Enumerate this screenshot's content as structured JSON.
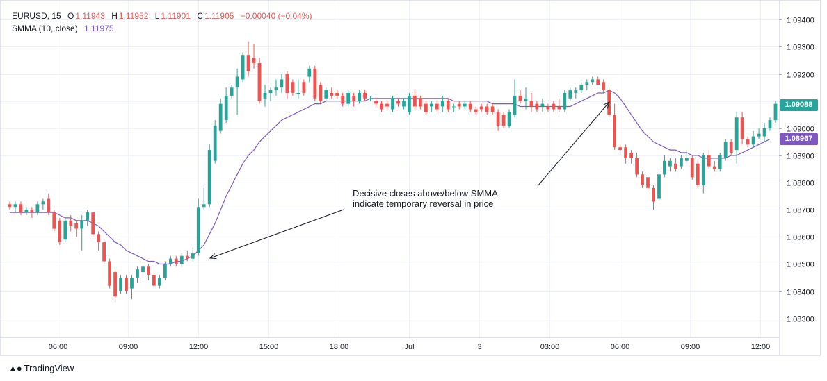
{
  "legend": {
    "symbol": "EURUSD, 15",
    "o_label": "O",
    "o_value": "1.11943",
    "h_label": "H",
    "h_value": "1.11952",
    "l_label": "L",
    "l_value": "1.11901",
    "c_label": "C",
    "c_value": "1.11905",
    "change": "−0.00040 (−0.04%)",
    "indicator": "SMMA (10, close)",
    "indicator_value": "1.11975"
  },
  "annotation": {
    "line1": "Decisive closes above/below SMMA",
    "line2": "indicate temporary reversal in price"
  },
  "price_tags": {
    "last_price": "1.09088",
    "smma_price": "1.08967"
  },
  "brand": {
    "name": "TradingView"
  },
  "colors": {
    "up": "#26a69a",
    "down": "#ef5350",
    "smma": "#7e57c2",
    "grid": "#f0f3fa",
    "axis_text": "#131722"
  },
  "chart_data": {
    "type": "candlestick",
    "title": "",
    "xlabel": "",
    "ylabel": "",
    "ylim": [
      1.0823,
      1.0947
    ],
    "y_ticks": [
      "1.08300",
      "1.08400",
      "1.08500",
      "1.08600",
      "1.08700",
      "1.08800",
      "1.08900",
      "1.09000",
      "1.09100",
      "1.09200",
      "1.09300",
      "1.09400"
    ],
    "x_ticks": [
      {
        "label": "06:00",
        "t": 6
      },
      {
        "label": "09:00",
        "t": 9
      },
      {
        "label": "12:00",
        "t": 12
      },
      {
        "label": "15:00",
        "t": 15
      },
      {
        "label": "18:00",
        "t": 18
      },
      {
        "label": "Jul",
        "t": 21
      },
      {
        "label": "3",
        "t": 24
      },
      {
        "label": "03:00",
        "t": 27
      },
      {
        "label": "06:00",
        "t": 30
      },
      {
        "label": "09:00",
        "t": 33
      },
      {
        "label": "12:00",
        "t": 36
      }
    ],
    "candles": [
      {
        "o": 1.0872,
        "h": 1.0873,
        "l": 1.087,
        "c": 1.0871
      },
      {
        "o": 1.0871,
        "h": 1.0873,
        "l": 1.0869,
        "c": 1.0872
      },
      {
        "o": 1.0872,
        "h": 1.0873,
        "l": 1.0868,
        "c": 1.0869
      },
      {
        "o": 1.0869,
        "h": 1.0871,
        "l": 1.0868,
        "c": 1.087
      },
      {
        "o": 1.087,
        "h": 1.0871,
        "l": 1.0867,
        "c": 1.0869
      },
      {
        "o": 1.0869,
        "h": 1.0873,
        "l": 1.0868,
        "c": 1.0872
      },
      {
        "o": 1.0872,
        "h": 1.0874,
        "l": 1.087,
        "c": 1.0873
      },
      {
        "o": 1.0874,
        "h": 1.0876,
        "l": 1.0868,
        "c": 1.0869
      },
      {
        "o": 1.0869,
        "h": 1.087,
        "l": 1.0862,
        "c": 1.0863
      },
      {
        "o": 1.0866,
        "h": 1.0867,
        "l": 1.0857,
        "c": 1.0858
      },
      {
        "o": 1.0859,
        "h": 1.0867,
        "l": 1.0858,
        "c": 1.0866
      },
      {
        "o": 1.0866,
        "h": 1.0868,
        "l": 1.0862,
        "c": 1.0864
      },
      {
        "o": 1.0865,
        "h": 1.0866,
        "l": 1.086,
        "c": 1.0863
      },
      {
        "o": 1.0863,
        "h": 1.0868,
        "l": 1.0855,
        "c": 1.0866
      },
      {
        "o": 1.0866,
        "h": 1.087,
        "l": 1.0864,
        "c": 1.0869
      },
      {
        "o": 1.0869,
        "h": 1.0869,
        "l": 1.086,
        "c": 1.0861
      },
      {
        "o": 1.0861,
        "h": 1.0862,
        "l": 1.0855,
        "c": 1.0858
      },
      {
        "o": 1.0858,
        "h": 1.0859,
        "l": 1.085,
        "c": 1.0851
      },
      {
        "o": 1.0851,
        "h": 1.0852,
        "l": 1.0841,
        "c": 1.0842
      },
      {
        "o": 1.0847,
        "h": 1.0848,
        "l": 1.0836,
        "c": 1.0838
      },
      {
        "o": 1.084,
        "h": 1.0846,
        "l": 1.0839,
        "c": 1.0845
      },
      {
        "o": 1.0845,
        "h": 1.0846,
        "l": 1.0839,
        "c": 1.084
      },
      {
        "o": 1.0841,
        "h": 1.0846,
        "l": 1.0837,
        "c": 1.0845
      },
      {
        "o": 1.0845,
        "h": 1.0849,
        "l": 1.0843,
        "c": 1.0848
      },
      {
        "o": 1.0847,
        "h": 1.085,
        "l": 1.0844,
        "c": 1.0849
      },
      {
        "o": 1.0849,
        "h": 1.085,
        "l": 1.0844,
        "c": 1.0846
      },
      {
        "o": 1.0846,
        "h": 1.0847,
        "l": 1.0841,
        "c": 1.0842
      },
      {
        "o": 1.0842,
        "h": 1.0846,
        "l": 1.0841,
        "c": 1.0845
      },
      {
        "o": 1.0845,
        "h": 1.0851,
        "l": 1.0844,
        "c": 1.085
      },
      {
        "o": 1.085,
        "h": 1.0853,
        "l": 1.0849,
        "c": 1.0852
      },
      {
        "o": 1.0852,
        "h": 1.0853,
        "l": 1.0849,
        "c": 1.085
      },
      {
        "o": 1.085,
        "h": 1.0854,
        "l": 1.0849,
        "c": 1.0853
      },
      {
        "o": 1.0853,
        "h": 1.0855,
        "l": 1.0851,
        "c": 1.0852
      },
      {
        "o": 1.0852,
        "h": 1.0856,
        "l": 1.0851,
        "c": 1.0854
      },
      {
        "o": 1.0854,
        "h": 1.0874,
        "l": 1.0853,
        "c": 1.0871
      },
      {
        "o": 1.0871,
        "h": 1.0878,
        "l": 1.087,
        "c": 1.0872
      },
      {
        "o": 1.0872,
        "h": 1.0894,
        "l": 1.0871,
        "c": 1.0892
      },
      {
        "o": 1.0888,
        "h": 1.0903,
        "l": 1.0887,
        "c": 1.0901
      },
      {
        "o": 1.0899,
        "h": 1.0911,
        "l": 1.0898,
        "c": 1.0909
      },
      {
        "o": 1.0903,
        "h": 1.0915,
        "l": 1.0902,
        "c": 1.0912
      },
      {
        "o": 1.0912,
        "h": 1.0916,
        "l": 1.0911,
        "c": 1.0915
      },
      {
        "o": 1.0915,
        "h": 1.0922,
        "l": 1.0905,
        "c": 1.0919
      },
      {
        "o": 1.0918,
        "h": 1.0928,
        "l": 1.0917,
        "c": 1.0927
      },
      {
        "o": 1.0927,
        "h": 1.0932,
        "l": 1.0919,
        "c": 1.0921
      },
      {
        "o": 1.0926,
        "h": 1.0931,
        "l": 1.0922,
        "c": 1.0924
      },
      {
        "o": 1.0924,
        "h": 1.0926,
        "l": 1.0909,
        "c": 1.091
      },
      {
        "o": 1.0911,
        "h": 1.0916,
        "l": 1.0908,
        "c": 1.0913
      },
      {
        "o": 1.0913,
        "h": 1.0915,
        "l": 1.091,
        "c": 1.0914
      },
      {
        "o": 1.0914,
        "h": 1.0918,
        "l": 1.0912,
        "c": 1.0915
      },
      {
        "o": 1.0915,
        "h": 1.092,
        "l": 1.0913,
        "c": 1.0918
      },
      {
        "o": 1.092,
        "h": 1.0921,
        "l": 1.0911,
        "c": 1.0913
      },
      {
        "o": 1.0917,
        "h": 1.0918,
        "l": 1.0912,
        "c": 1.0913
      },
      {
        "o": 1.0913,
        "h": 1.0918,
        "l": 1.0911,
        "c": 1.0913
      },
      {
        "o": 1.0917,
        "h": 1.0918,
        "l": 1.0912,
        "c": 1.0913
      },
      {
        "o": 1.0919,
        "h": 1.0923,
        "l": 1.0917,
        "c": 1.0922
      },
      {
        "o": 1.0922,
        "h": 1.0923,
        "l": 1.091,
        "c": 1.0911
      },
      {
        "o": 1.0916,
        "h": 1.0917,
        "l": 1.0909,
        "c": 1.091
      },
      {
        "o": 1.0911,
        "h": 1.0915,
        "l": 1.091,
        "c": 1.0914
      },
      {
        "o": 1.0913,
        "h": 1.0915,
        "l": 1.0911,
        "c": 1.0912
      },
      {
        "o": 1.0913,
        "h": 1.0914,
        "l": 1.0911,
        "c": 1.0912
      },
      {
        "o": 1.0912,
        "h": 1.0913,
        "l": 1.0908,
        "c": 1.0909
      },
      {
        "o": 1.0909,
        "h": 1.0914,
        "l": 1.0908,
        "c": 1.0913
      },
      {
        "o": 1.0912,
        "h": 1.0913,
        "l": 1.0908,
        "c": 1.091
      },
      {
        "o": 1.091,
        "h": 1.0914,
        "l": 1.0909,
        "c": 1.0913
      },
      {
        "o": 1.0913,
        "h": 1.0914,
        "l": 1.091,
        "c": 1.0911
      },
      {
        "o": 1.0911,
        "h": 1.0912,
        "l": 1.091,
        "c": 1.0911
      },
      {
        "o": 1.091,
        "h": 1.0911,
        "l": 1.0908,
        "c": 1.0909
      },
      {
        "o": 1.0909,
        "h": 1.091,
        "l": 1.0906,
        "c": 1.0907
      },
      {
        "o": 1.0909,
        "h": 1.091,
        "l": 1.0907,
        "c": 1.0908
      },
      {
        "o": 1.0907,
        "h": 1.0912,
        "l": 1.0906,
        "c": 1.0911
      },
      {
        "o": 1.091,
        "h": 1.0911,
        "l": 1.0908,
        "c": 1.0909
      },
      {
        "o": 1.0908,
        "h": 1.0911,
        "l": 1.0907,
        "c": 1.091
      },
      {
        "o": 1.0906,
        "h": 1.0913,
        "l": 1.0905,
        "c": 1.0912
      },
      {
        "o": 1.0912,
        "h": 1.0914,
        "l": 1.0907,
        "c": 1.0908
      },
      {
        "o": 1.0911,
        "h": 1.0912,
        "l": 1.0907,
        "c": 1.0908
      },
      {
        "o": 1.0909,
        "h": 1.091,
        "l": 1.0905,
        "c": 1.0906
      },
      {
        "o": 1.0908,
        "h": 1.091,
        "l": 1.0906,
        "c": 1.0909
      },
      {
        "o": 1.0909,
        "h": 1.091,
        "l": 1.0906,
        "c": 1.0907
      },
      {
        "o": 1.0908,
        "h": 1.0912,
        "l": 1.0906,
        "c": 1.091
      },
      {
        "o": 1.091,
        "h": 1.0911,
        "l": 1.0906,
        "c": 1.0907
      },
      {
        "o": 1.0908,
        "h": 1.0909,
        "l": 1.0906,
        "c": 1.0908
      },
      {
        "o": 1.0909,
        "h": 1.091,
        "l": 1.0907,
        "c": 1.0908
      },
      {
        "o": 1.0908,
        "h": 1.091,
        "l": 1.0907,
        "c": 1.0909
      },
      {
        "o": 1.0909,
        "h": 1.091,
        "l": 1.0906,
        "c": 1.0907
      },
      {
        "o": 1.0907,
        "h": 1.0908,
        "l": 1.0905,
        "c": 1.0906
      },
      {
        "o": 1.0908,
        "h": 1.0909,
        "l": 1.0906,
        "c": 1.0907
      },
      {
        "o": 1.0908,
        "h": 1.0909,
        "l": 1.0905,
        "c": 1.0906
      },
      {
        "o": 1.0908,
        "h": 1.0909,
        "l": 1.0905,
        "c": 1.0906
      },
      {
        "o": 1.0906,
        "h": 1.0907,
        "l": 1.0899,
        "c": 1.0901
      },
      {
        "o": 1.0905,
        "h": 1.0906,
        "l": 1.09,
        "c": 1.0901
      },
      {
        "o": 1.0901,
        "h": 1.0907,
        "l": 1.09,
        "c": 1.0906
      },
      {
        "o": 1.0905,
        "h": 1.0918,
        "l": 1.0904,
        "c": 1.0912
      },
      {
        "o": 1.0912,
        "h": 1.0914,
        "l": 1.0909,
        "c": 1.091
      },
      {
        "o": 1.091,
        "h": 1.0915,
        "l": 1.0907,
        "c": 1.0911
      },
      {
        "o": 1.091,
        "h": 1.0913,
        "l": 1.0906,
        "c": 1.0908
      },
      {
        "o": 1.0909,
        "h": 1.091,
        "l": 1.0906,
        "c": 1.0907
      },
      {
        "o": 1.0908,
        "h": 1.0911,
        "l": 1.0906,
        "c": 1.0909
      },
      {
        "o": 1.0908,
        "h": 1.0909,
        "l": 1.0906,
        "c": 1.0907
      },
      {
        "o": 1.0909,
        "h": 1.091,
        "l": 1.0906,
        "c": 1.0907
      },
      {
        "o": 1.0908,
        "h": 1.0911,
        "l": 1.0906,
        "c": 1.0907
      },
      {
        "o": 1.0907,
        "h": 1.0914,
        "l": 1.0906,
        "c": 1.0913
      },
      {
        "o": 1.0911,
        "h": 1.0915,
        "l": 1.091,
        "c": 1.0914
      },
      {
        "o": 1.0913,
        "h": 1.0915,
        "l": 1.0911,
        "c": 1.0914
      },
      {
        "o": 1.0914,
        "h": 1.0917,
        "l": 1.0913,
        "c": 1.0916
      },
      {
        "o": 1.0916,
        "h": 1.0918,
        "l": 1.0914,
        "c": 1.0917
      },
      {
        "o": 1.0917,
        "h": 1.0919,
        "l": 1.0916,
        "c": 1.0918
      },
      {
        "o": 1.0918,
        "h": 1.0919,
        "l": 1.0916,
        "c": 1.0916
      },
      {
        "o": 1.0917,
        "h": 1.0918,
        "l": 1.0913,
        "c": 1.0914
      },
      {
        "o": 1.0914,
        "h": 1.0915,
        "l": 1.0904,
        "c": 1.0905
      },
      {
        "o": 1.0905,
        "h": 1.0909,
        "l": 1.0892,
        "c": 1.0893
      },
      {
        "o": 1.0893,
        "h": 1.0894,
        "l": 1.0891,
        "c": 1.0892
      },
      {
        "o": 1.0893,
        "h": 1.0894,
        "l": 1.0887,
        "c": 1.0889
      },
      {
        "o": 1.0891,
        "h": 1.0892,
        "l": 1.0887,
        "c": 1.0889
      },
      {
        "o": 1.0889,
        "h": 1.0891,
        "l": 1.0882,
        "c": 1.0883
      },
      {
        "o": 1.0883,
        "h": 1.0884,
        "l": 1.0878,
        "c": 1.0879
      },
      {
        "o": 1.0882,
        "h": 1.0883,
        "l": 1.0877,
        "c": 1.0878
      },
      {
        "o": 1.0878,
        "h": 1.0879,
        "l": 1.087,
        "c": 1.0873
      },
      {
        "o": 1.0874,
        "h": 1.0884,
        "l": 1.0873,
        "c": 1.0883
      },
      {
        "o": 1.0883,
        "h": 1.089,
        "l": 1.0882,
        "c": 1.0888
      },
      {
        "o": 1.0886,
        "h": 1.0889,
        "l": 1.0884,
        "c": 1.0888
      },
      {
        "o": 1.0887,
        "h": 1.0889,
        "l": 1.0884,
        "c": 1.0885
      },
      {
        "o": 1.0886,
        "h": 1.089,
        "l": 1.0885,
        "c": 1.0889
      },
      {
        "o": 1.0888,
        "h": 1.0892,
        "l": 1.0887,
        "c": 1.0889
      },
      {
        "o": 1.0889,
        "h": 1.089,
        "l": 1.0881,
        "c": 1.0882
      },
      {
        "o": 1.0887,
        "h": 1.0888,
        "l": 1.0878,
        "c": 1.0879
      },
      {
        "o": 1.0879,
        "h": 1.0891,
        "l": 1.0876,
        "c": 1.089
      },
      {
        "o": 1.089,
        "h": 1.0892,
        "l": 1.0885,
        "c": 1.0886
      },
      {
        "o": 1.0886,
        "h": 1.0888,
        "l": 1.0884,
        "c": 1.0885
      },
      {
        "o": 1.0885,
        "h": 1.0891,
        "l": 1.0884,
        "c": 1.089
      },
      {
        "o": 1.0889,
        "h": 1.0896,
        "l": 1.0888,
        "c": 1.0895
      },
      {
        "o": 1.0895,
        "h": 1.0896,
        "l": 1.089,
        "c": 1.0891
      },
      {
        "o": 1.0892,
        "h": 1.0906,
        "l": 1.0887,
        "c": 1.0904
      },
      {
        "o": 1.0904,
        "h": 1.0906,
        "l": 1.0894,
        "c": 1.0896
      },
      {
        "o": 1.0896,
        "h": 1.0897,
        "l": 1.0893,
        "c": 1.0894
      },
      {
        "o": 1.0894,
        "h": 1.0899,
        "l": 1.0893,
        "c": 1.0897
      },
      {
        "o": 1.0897,
        "h": 1.09,
        "l": 1.0896,
        "c": 1.0898
      },
      {
        "o": 1.0897,
        "h": 1.0902,
        "l": 1.0895,
        "c": 1.09
      },
      {
        "o": 1.09,
        "h": 1.0904,
        "l": 1.0899,
        "c": 1.0903
      },
      {
        "o": 1.0903,
        "h": 1.091,
        "l": 1.0902,
        "c": 1.0909
      }
    ],
    "smma": [
      1.0869,
      1.0869,
      1.0869,
      1.0869,
      1.0869,
      1.0869,
      1.0869,
      1.0869,
      1.0869,
      1.0868,
      1.0867,
      1.0867,
      1.0866,
      1.0866,
      1.0866,
      1.0865,
      1.0864,
      1.0862,
      1.086,
      1.0858,
      1.0857,
      1.0855,
      1.0854,
      1.0853,
      1.0852,
      1.0851,
      1.0851,
      1.085,
      1.085,
      1.085,
      1.0851,
      1.0851,
      1.0852,
      1.0853,
      1.0855,
      1.0857,
      1.0861,
      1.0865,
      1.087,
      1.0875,
      1.0879,
      1.0883,
      1.0887,
      1.089,
      1.0892,
      1.0895,
      1.0897,
      1.0899,
      1.0901,
      1.0903,
      1.0904,
      1.0905,
      1.0906,
      1.0907,
      1.0908,
      1.0909,
      1.0909,
      1.091,
      1.091,
      1.091,
      1.091,
      1.091,
      1.091,
      1.091,
      1.091,
      1.0911,
      1.0911,
      1.0911,
      1.0911,
      1.0911,
      1.0911,
      1.0911,
      1.0911,
      1.0911,
      1.0911,
      1.0911,
      1.0911,
      1.0911,
      1.0911,
      1.0911,
      1.091,
      1.091,
      1.091,
      1.091,
      1.091,
      1.091,
      1.091,
      1.0909,
      1.0909,
      1.0909,
      1.0909,
      1.0909,
      1.0908,
      1.0908,
      1.0908,
      1.0908,
      1.0908,
      1.0908,
      1.0908,
      1.0908,
      1.0908,
      1.0908,
      1.0909,
      1.091,
      1.0911,
      1.0912,
      1.0913,
      1.0913,
      1.0914,
      1.0913,
      1.0911,
      1.0908,
      1.0905,
      1.0902,
      1.0899,
      1.0897,
      1.0895,
      1.0894,
      1.0893,
      1.0892,
      1.0892,
      1.0891,
      1.0891,
      1.089,
      1.089,
      1.0889,
      1.0889,
      1.0889,
      1.0889,
      1.0889,
      1.089,
      1.089,
      1.0891,
      1.0892,
      1.0893,
      1.0894,
      1.0895,
      1.0896
    ]
  }
}
